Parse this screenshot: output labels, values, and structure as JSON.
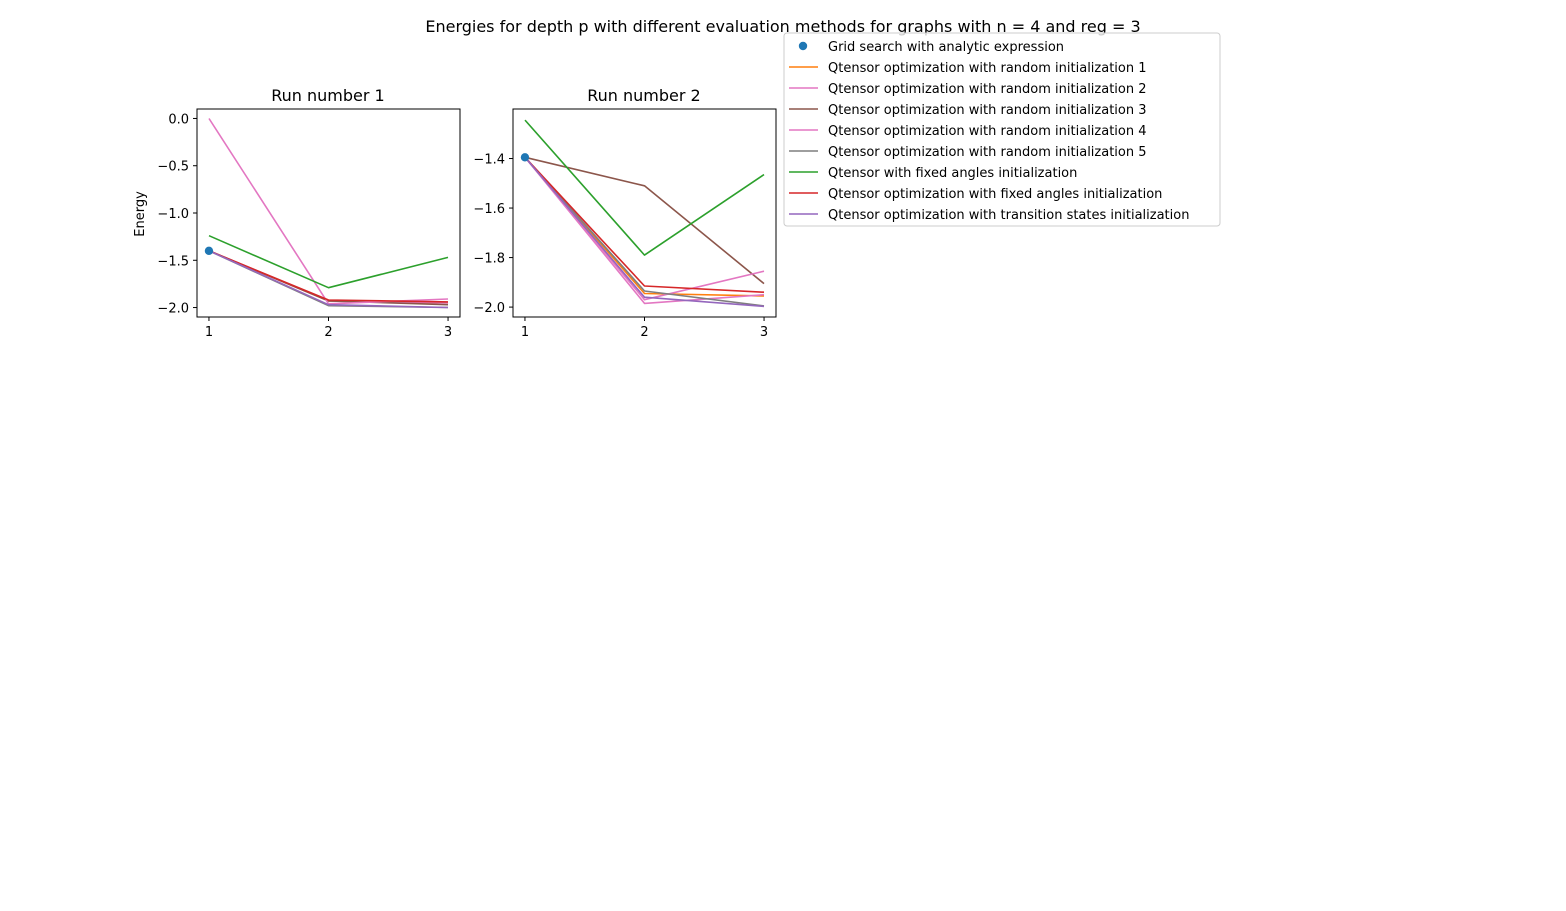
{
  "figure": {
    "suptitle": "Energies for depth p with different evaluation methods for graphs with n = 4 and reg = 3"
  },
  "legend": {
    "placement": "upper right, outside the subplots",
    "entries": [
      {
        "label": "Grid search with analytic expression",
        "color": "#1f77b4",
        "kind": "marker"
      },
      {
        "label": "Qtensor optimization with random initialization 1",
        "color": "#ff7f0e",
        "kind": "line"
      },
      {
        "label": "Qtensor optimization with random initialization 2",
        "color": "#e377c2",
        "kind": "line"
      },
      {
        "label": "Qtensor optimization with random initialization 3",
        "color": "#8c564b",
        "kind": "line"
      },
      {
        "label": "Qtensor optimization with random initialization 4",
        "color": "#e377c2",
        "kind": "line"
      },
      {
        "label": "Qtensor optimization with random initialization 5",
        "color": "#7f7f7f",
        "kind": "line"
      },
      {
        "label": "Qtensor with fixed angles initialization",
        "color": "#2ca02c",
        "kind": "line"
      },
      {
        "label": "Qtensor optimization with fixed angles initialization",
        "color": "#d62728",
        "kind": "line"
      },
      {
        "label": "Qtensor optimization with transition states initialization",
        "color": "#9467bd",
        "kind": "line"
      }
    ]
  },
  "chart_data": [
    {
      "type": "line",
      "title": "Run number 1",
      "xlabel": "",
      "ylabel": "Energy",
      "x": [
        1,
        2,
        3
      ],
      "xticks": [
        "1",
        "2",
        "3"
      ],
      "yticks": [
        0.0,
        -0.5,
        -1.0,
        -1.5,
        -2.0
      ],
      "ytick_labels": [
        "0.0",
        "−0.5",
        "−1.0",
        "−1.5",
        "−2.0"
      ],
      "xlim": [
        0.9,
        3.1
      ],
      "ylim": [
        -2.1,
        0.1
      ],
      "grid": false,
      "scatter": {
        "name": "Grid search with analytic expression",
        "x": [
          1
        ],
        "y": [
          -1.4
        ],
        "color": "#1f77b4"
      },
      "series": [
        {
          "name": "Qtensor optimization with random initialization 1",
          "color": "#ff7f0e",
          "values": [
            -1.4,
            -1.93,
            -1.95
          ]
        },
        {
          "name": "Qtensor optimization with random initialization 2",
          "color": "#e377c2",
          "values": [
            -1.4,
            -1.93,
            -1.95
          ]
        },
        {
          "name": "Qtensor optimization with random initialization 3",
          "color": "#8c564b",
          "values": [
            -1.4,
            -1.93,
            -1.97
          ]
        },
        {
          "name": "Qtensor optimization with random initialization 4",
          "color": "#e377c2",
          "values": [
            0.0,
            -1.96,
            -1.91
          ]
        },
        {
          "name": "Qtensor optimization with random initialization 5",
          "color": "#7f7f7f",
          "values": [
            -1.4,
            -1.98,
            -2.0
          ]
        },
        {
          "name": "Qtensor with fixed angles initialization",
          "color": "#2ca02c",
          "values": [
            -1.24,
            -1.79,
            -1.47
          ]
        },
        {
          "name": "Qtensor optimization with fixed angles initialization",
          "color": "#d62728",
          "values": [
            -1.4,
            -1.92,
            -1.94
          ]
        },
        {
          "name": "Qtensor optimization with transition states initialization",
          "color": "#9467bd",
          "values": [
            -1.4,
            -1.97,
            -2.0
          ]
        }
      ]
    },
    {
      "type": "line",
      "title": "Run number 2",
      "xlabel": "",
      "ylabel": "",
      "x": [
        1,
        2,
        3
      ],
      "xticks": [
        "1",
        "2",
        "3"
      ],
      "yticks": [
        -1.4,
        -1.6,
        -1.8,
        -2.0
      ],
      "ytick_labels": [
        "−1.4",
        "−1.6",
        "−1.8",
        "−2.0"
      ],
      "xlim": [
        0.9,
        3.1
      ],
      "ylim": [
        -2.04,
        -1.2
      ],
      "grid": false,
      "scatter": {
        "name": "Grid search with analytic expression",
        "x": [
          1
        ],
        "y": [
          -1.395
        ],
        "color": "#1f77b4"
      },
      "series": [
        {
          "name": "Qtensor optimization with random initialization 1",
          "color": "#ff7f0e",
          "values": [
            -1.395,
            -1.945,
            -1.955
          ]
        },
        {
          "name": "Qtensor optimization with random initialization 2",
          "color": "#e377c2",
          "values": [
            -1.395,
            -1.985,
            -1.95
          ]
        },
        {
          "name": "Qtensor optimization with random initialization 3",
          "color": "#8c564b",
          "values": [
            -1.395,
            -1.51,
            -1.905
          ]
        },
        {
          "name": "Qtensor optimization with random initialization 4",
          "color": "#e377c2",
          "values": [
            -1.395,
            -1.97,
            -1.855
          ]
        },
        {
          "name": "Qtensor optimization with random initialization 5",
          "color": "#7f7f7f",
          "values": [
            -1.395,
            -1.935,
            -1.995
          ]
        },
        {
          "name": "Qtensor with fixed angles initialization",
          "color": "#2ca02c",
          "values": [
            -1.245,
            -1.79,
            -1.465
          ]
        },
        {
          "name": "Qtensor optimization with fixed angles initialization",
          "color": "#d62728",
          "values": [
            -1.395,
            -1.915,
            -1.94
          ]
        },
        {
          "name": "Qtensor optimization with transition states initialization",
          "color": "#9467bd",
          "values": [
            -1.395,
            -1.96,
            -1.997
          ]
        }
      ]
    }
  ]
}
